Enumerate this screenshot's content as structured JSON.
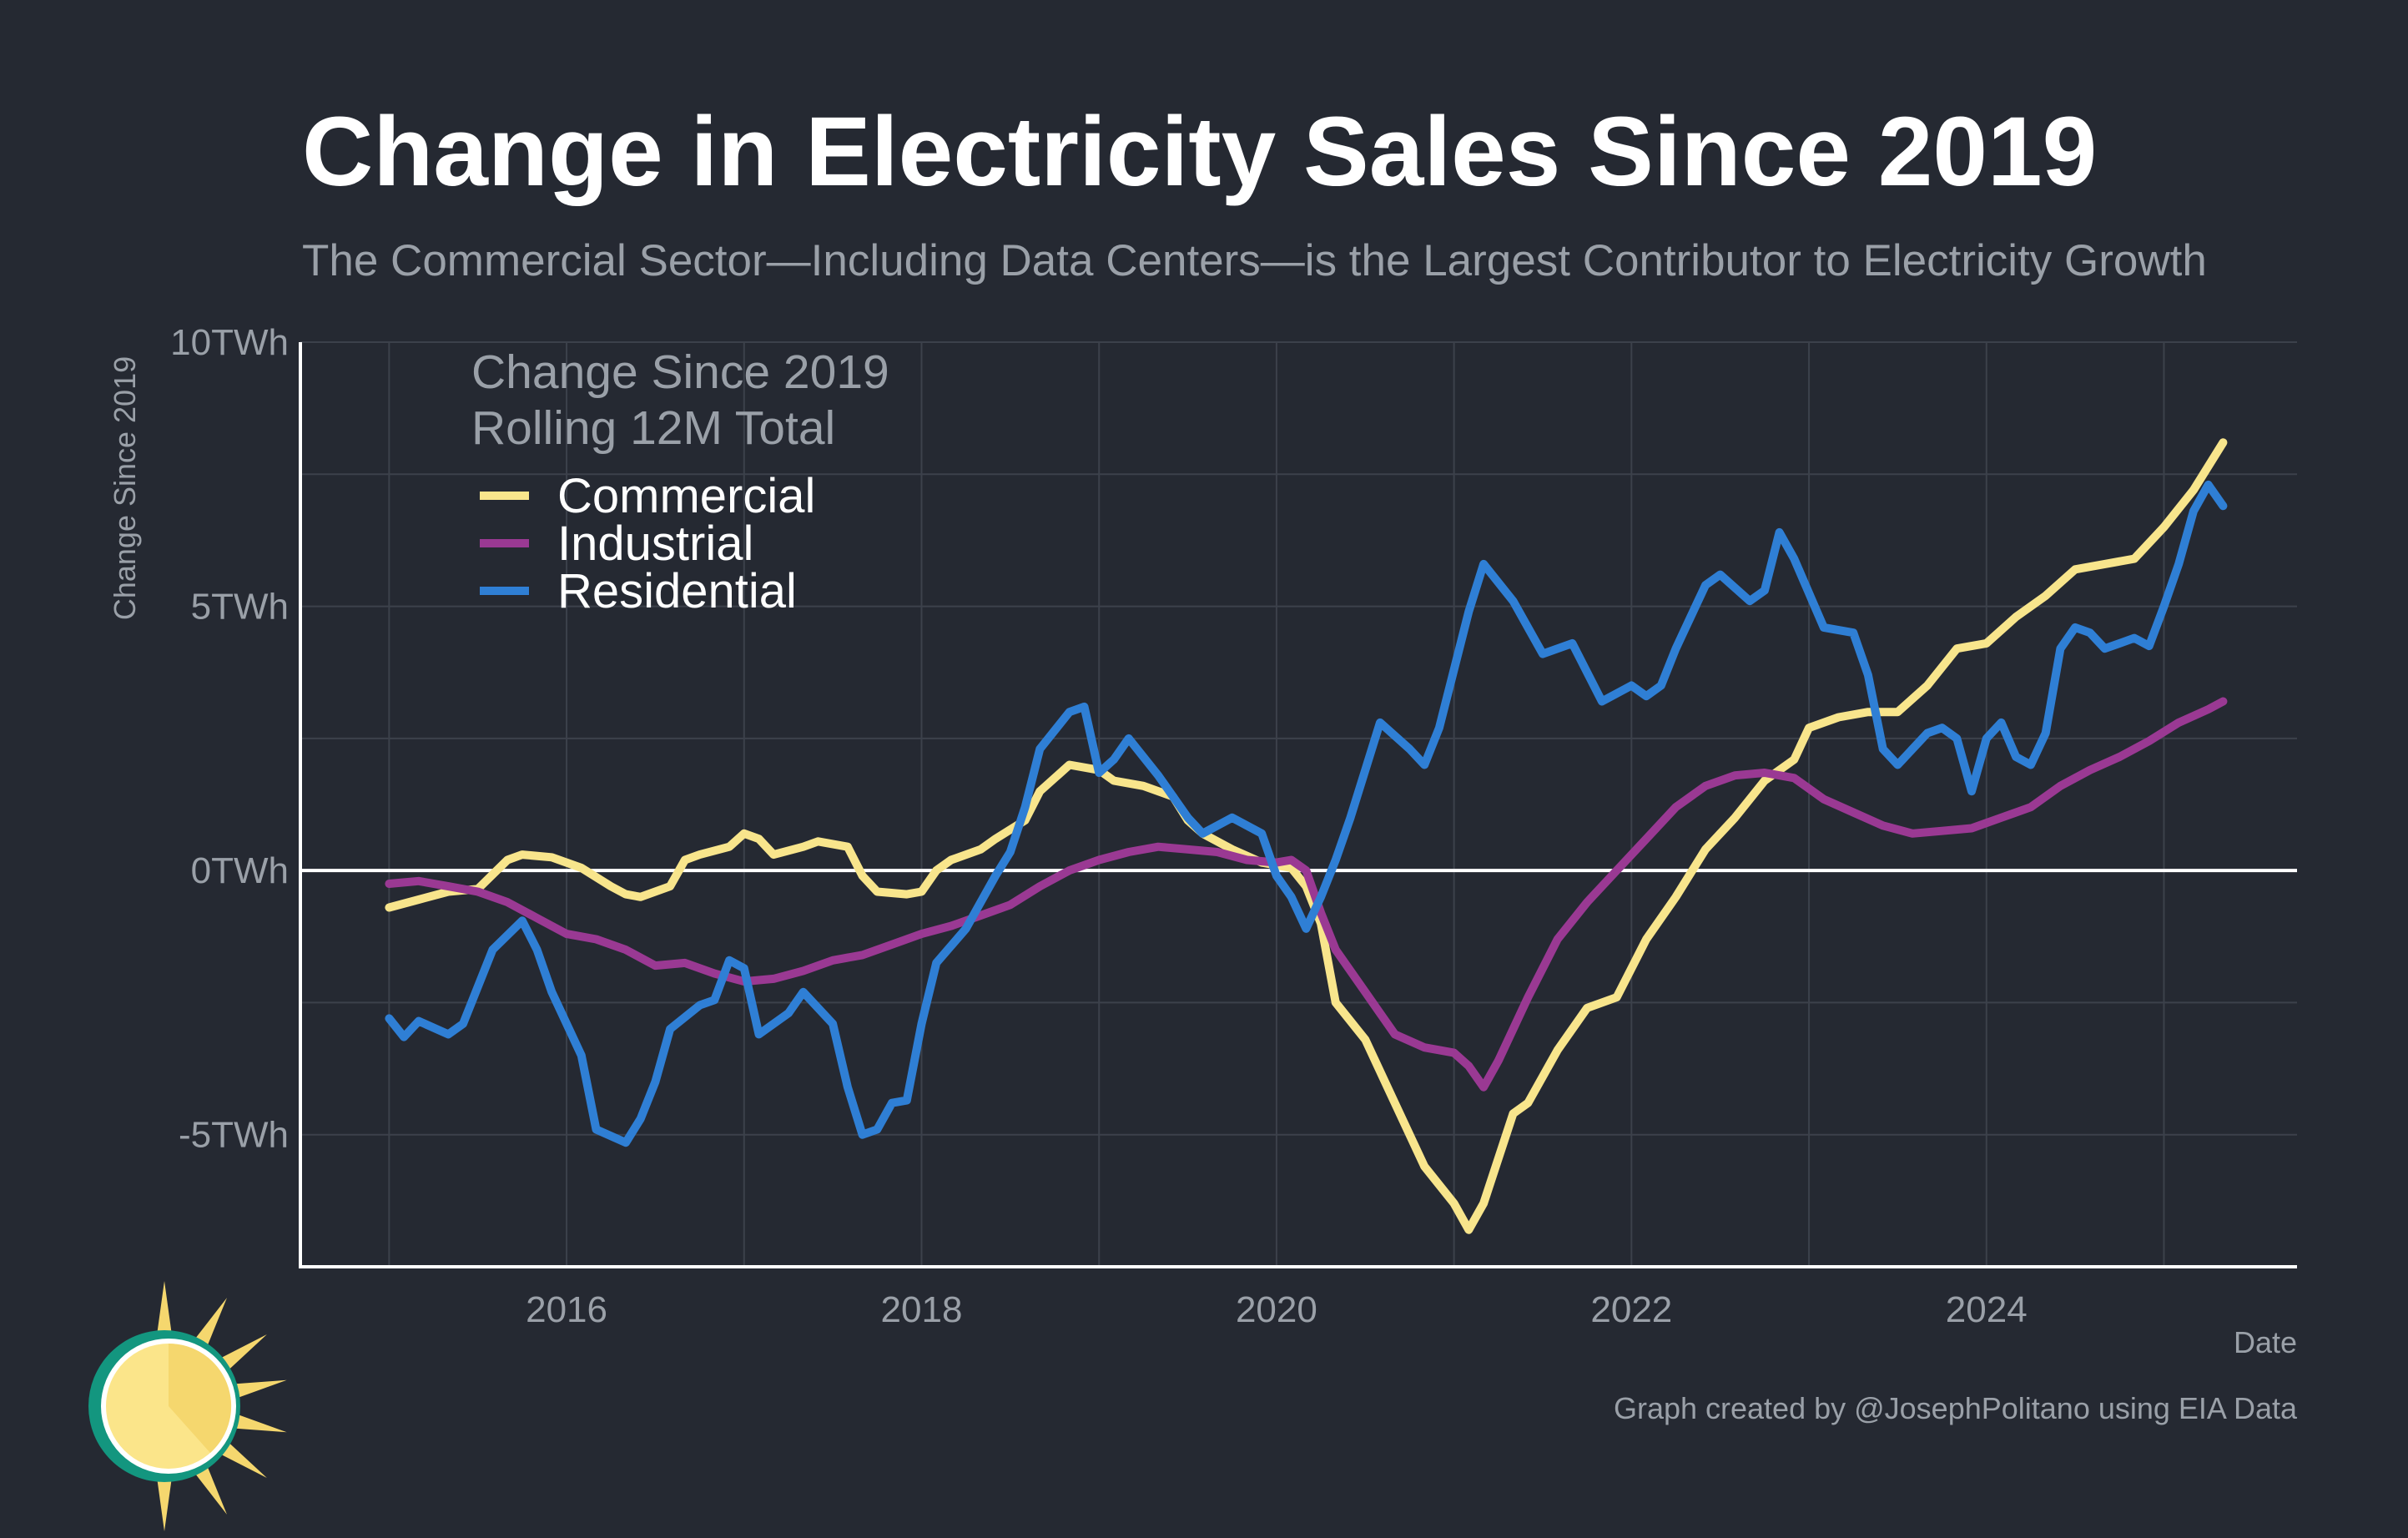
{
  "header": {
    "title": "Change in Electricity Sales Since 2019",
    "subtitle": "The Commercial Sector—Including Data Centers—is the Largest Contributor to Electricity Growth"
  },
  "footer": {
    "credit": "Graph created by @JosephPolitano using EIA Data",
    "logo_icon": "sun-logo-icon"
  },
  "colors": {
    "background": "#252932",
    "grid": "#3c414b",
    "zero_line": "#ffffff",
    "axis": "#ffffff"
  },
  "chart_data": {
    "type": "line",
    "title": "Change in Electricity Sales Since 2019",
    "subtitle": "The Commercial Sector—Including Data Centers—is the Largest Contributor to Electricity Growth",
    "xlabel": "Date",
    "ylabel": "Change Since 2019",
    "x_start": "2015-01",
    "x_end": "2025-05",
    "xlim": [
      "2014-07",
      "2025-10"
    ],
    "ylim": [
      -7.5,
      10
    ],
    "x_ticks": [
      {
        "date": "2016-01",
        "label": "2016"
      },
      {
        "date": "2018-01",
        "label": "2018"
      },
      {
        "date": "2020-01",
        "label": "2020"
      },
      {
        "date": "2022-01",
        "label": "2022"
      },
      {
        "date": "2024-01",
        "label": "2024"
      }
    ],
    "y_ticks": [
      {
        "value": -5,
        "label": "-5TWh"
      },
      {
        "value": 0,
        "label": "0TWh"
      },
      {
        "value": 5,
        "label": "5TWh"
      },
      {
        "value": 10,
        "label": "10TWh"
      }
    ],
    "grid": true,
    "legend": {
      "title_line1": "Change Since 2019",
      "title_line2": "Rolling 12M Total",
      "placement": "top-left"
    },
    "series": [
      {
        "name": "Commercial",
        "color": "#f8e58c",
        "points": [
          [
            "2015-01",
            -0.7
          ],
          [
            "2015-03",
            -0.55
          ],
          [
            "2015-05",
            -0.4
          ],
          [
            "2015-07",
            -0.35
          ],
          [
            "2015-09",
            0.2
          ],
          [
            "2015-10",
            0.3
          ],
          [
            "2015-12",
            0.25
          ],
          [
            "2016-02",
            0.05
          ],
          [
            "2016-04",
            -0.3
          ],
          [
            "2016-05",
            -0.45
          ],
          [
            "2016-06",
            -0.5
          ],
          [
            "2016-08",
            -0.3
          ],
          [
            "2016-09",
            0.2
          ],
          [
            "2016-10",
            0.3
          ],
          [
            "2016-12",
            0.45
          ],
          [
            "2017-01",
            0.7
          ],
          [
            "2017-02",
            0.6
          ],
          [
            "2017-03",
            0.3
          ],
          [
            "2017-05",
            0.45
          ],
          [
            "2017-06",
            0.55
          ],
          [
            "2017-08",
            0.45
          ],
          [
            "2017-09",
            -0.1
          ],
          [
            "2017-10",
            -0.4
          ],
          [
            "2017-12",
            -0.45
          ],
          [
            "2018-01",
            -0.4
          ],
          [
            "2018-02",
            0.0
          ],
          [
            "2018-03",
            0.2
          ],
          [
            "2018-05",
            0.4
          ],
          [
            "2018-06",
            0.6
          ],
          [
            "2018-08",
            0.95
          ],
          [
            "2018-09",
            1.5
          ],
          [
            "2018-11",
            2.0
          ],
          [
            "2019-01",
            1.9
          ],
          [
            "2019-02",
            1.7
          ],
          [
            "2019-04",
            1.6
          ],
          [
            "2019-06",
            1.4
          ],
          [
            "2019-07",
            0.95
          ],
          [
            "2019-08",
            0.7
          ],
          [
            "2019-10",
            0.4
          ],
          [
            "2019-12",
            0.15
          ],
          [
            "2020-02",
            0.05
          ],
          [
            "2020-03",
            -0.3
          ],
          [
            "2020-04",
            -1.0
          ],
          [
            "2020-05",
            -2.5
          ],
          [
            "2020-07",
            -3.2
          ],
          [
            "2020-09",
            -4.4
          ],
          [
            "2020-11",
            -5.6
          ],
          [
            "2021-01",
            -6.3
          ],
          [
            "2021-02",
            -6.8
          ],
          [
            "2021-03",
            -6.3
          ],
          [
            "2021-05",
            -4.6
          ],
          [
            "2021-06",
            -4.4
          ],
          [
            "2021-08",
            -3.4
          ],
          [
            "2021-10",
            -2.6
          ],
          [
            "2021-12",
            -2.4
          ],
          [
            "2022-02",
            -1.3
          ],
          [
            "2022-04",
            -0.5
          ],
          [
            "2022-06",
            0.4
          ],
          [
            "2022-08",
            1.0
          ],
          [
            "2022-10",
            1.7
          ],
          [
            "2022-12",
            2.1
          ],
          [
            "2023-01",
            2.7
          ],
          [
            "2023-03",
            2.9
          ],
          [
            "2023-05",
            3.0
          ],
          [
            "2023-07",
            3.0
          ],
          [
            "2023-09",
            3.5
          ],
          [
            "2023-11",
            4.2
          ],
          [
            "2024-01",
            4.3
          ],
          [
            "2024-03",
            4.8
          ],
          [
            "2024-05",
            5.2
          ],
          [
            "2024-07",
            5.7
          ],
          [
            "2024-09",
            5.8
          ],
          [
            "2024-11",
            5.9
          ],
          [
            "2025-01",
            6.5
          ],
          [
            "2025-03",
            7.2
          ],
          [
            "2025-05",
            8.1
          ]
        ]
      },
      {
        "name": "Industrial",
        "color": "#9a3993",
        "points": [
          [
            "2015-01",
            -0.25
          ],
          [
            "2015-03",
            -0.2
          ],
          [
            "2015-05",
            -0.3
          ],
          [
            "2015-07",
            -0.4
          ],
          [
            "2015-09",
            -0.6
          ],
          [
            "2015-11",
            -0.9
          ],
          [
            "2016-01",
            -1.2
          ],
          [
            "2016-03",
            -1.3
          ],
          [
            "2016-05",
            -1.5
          ],
          [
            "2016-07",
            -1.8
          ],
          [
            "2016-09",
            -1.75
          ],
          [
            "2016-11",
            -1.95
          ],
          [
            "2017-01",
            -2.1
          ],
          [
            "2017-03",
            -2.05
          ],
          [
            "2017-05",
            -1.9
          ],
          [
            "2017-07",
            -1.7
          ],
          [
            "2017-09",
            -1.6
          ],
          [
            "2017-11",
            -1.4
          ],
          [
            "2018-01",
            -1.2
          ],
          [
            "2018-03",
            -1.05
          ],
          [
            "2018-05",
            -0.85
          ],
          [
            "2018-07",
            -0.65
          ],
          [
            "2018-09",
            -0.3
          ],
          [
            "2018-11",
            0.0
          ],
          [
            "2019-01",
            0.2
          ],
          [
            "2019-03",
            0.35
          ],
          [
            "2019-05",
            0.45
          ],
          [
            "2019-07",
            0.4
          ],
          [
            "2019-09",
            0.35
          ],
          [
            "2019-11",
            0.2
          ],
          [
            "2020-01",
            0.15
          ],
          [
            "2020-02",
            0.2
          ],
          [
            "2020-03",
            0.0
          ],
          [
            "2020-04",
            -0.8
          ],
          [
            "2020-05",
            -1.5
          ],
          [
            "2020-07",
            -2.3
          ],
          [
            "2020-09",
            -3.1
          ],
          [
            "2020-11",
            -3.35
          ],
          [
            "2021-01",
            -3.45
          ],
          [
            "2021-02",
            -3.7
          ],
          [
            "2021-03",
            -4.1
          ],
          [
            "2021-04",
            -3.6
          ],
          [
            "2021-06",
            -2.4
          ],
          [
            "2021-08",
            -1.3
          ],
          [
            "2021-10",
            -0.6
          ],
          [
            "2021-12",
            0.0
          ],
          [
            "2022-02",
            0.6
          ],
          [
            "2022-04",
            1.2
          ],
          [
            "2022-06",
            1.6
          ],
          [
            "2022-08",
            1.8
          ],
          [
            "2022-10",
            1.85
          ],
          [
            "2022-12",
            1.75
          ],
          [
            "2023-02",
            1.35
          ],
          [
            "2023-04",
            1.1
          ],
          [
            "2023-06",
            0.85
          ],
          [
            "2023-08",
            0.7
          ],
          [
            "2023-10",
            0.75
          ],
          [
            "2023-12",
            0.8
          ],
          [
            "2024-02",
            1.0
          ],
          [
            "2024-04",
            1.2
          ],
          [
            "2024-06",
            1.6
          ],
          [
            "2024-08",
            1.9
          ],
          [
            "2024-10",
            2.15
          ],
          [
            "2024-12",
            2.45
          ],
          [
            "2025-02",
            2.8
          ],
          [
            "2025-04",
            3.05
          ],
          [
            "2025-05",
            3.2
          ]
        ]
      },
      {
        "name": "Residential",
        "color": "#2f7fd5",
        "points": [
          [
            "2015-01",
            -2.8
          ],
          [
            "2015-02",
            -3.15
          ],
          [
            "2015-03",
            -2.85
          ],
          [
            "2015-05",
            -3.1
          ],
          [
            "2015-06",
            -2.9
          ],
          [
            "2015-08",
            -1.5
          ],
          [
            "2015-10",
            -0.95
          ],
          [
            "2015-11",
            -1.5
          ],
          [
            "2015-12",
            -2.3
          ],
          [
            "2016-02",
            -3.5
          ],
          [
            "2016-03",
            -4.9
          ],
          [
            "2016-05",
            -5.15
          ],
          [
            "2016-06",
            -4.7
          ],
          [
            "2016-07",
            -4.0
          ],
          [
            "2016-08",
            -3.0
          ],
          [
            "2016-10",
            -2.55
          ],
          [
            "2016-11",
            -2.45
          ],
          [
            "2016-12",
            -1.7
          ],
          [
            "2017-01",
            -1.85
          ],
          [
            "2017-02",
            -3.1
          ],
          [
            "2017-04",
            -2.7
          ],
          [
            "2017-05",
            -2.3
          ],
          [
            "2017-07",
            -2.9
          ],
          [
            "2017-08",
            -4.1
          ],
          [
            "2017-09",
            -5.0
          ],
          [
            "2017-10",
            -4.9
          ],
          [
            "2017-11",
            -4.4
          ],
          [
            "2017-12",
            -4.35
          ],
          [
            "2018-01",
            -2.9
          ],
          [
            "2018-02",
            -1.75
          ],
          [
            "2018-04",
            -1.1
          ],
          [
            "2018-05",
            -0.6
          ],
          [
            "2018-06",
            -0.1
          ],
          [
            "2018-07",
            0.35
          ],
          [
            "2018-08",
            1.2
          ],
          [
            "2018-09",
            2.3
          ],
          [
            "2018-11",
            3.0
          ],
          [
            "2018-12",
            3.1
          ],
          [
            "2019-01",
            1.85
          ],
          [
            "2019-02",
            2.1
          ],
          [
            "2019-03",
            2.5
          ],
          [
            "2019-05",
            1.8
          ],
          [
            "2019-07",
            1.0
          ],
          [
            "2019-08",
            0.7
          ],
          [
            "2019-10",
            1.0
          ],
          [
            "2019-12",
            0.7
          ],
          [
            "2020-01",
            -0.1
          ],
          [
            "2020-02",
            -0.5
          ],
          [
            "2020-03",
            -1.1
          ],
          [
            "2020-04",
            -0.5
          ],
          [
            "2020-05",
            0.2
          ],
          [
            "2020-06",
            1.0
          ],
          [
            "2020-07",
            1.9
          ],
          [
            "2020-08",
            2.8
          ],
          [
            "2020-10",
            2.3
          ],
          [
            "2020-11",
            2.0
          ],
          [
            "2020-12",
            2.7
          ],
          [
            "2021-02",
            4.9
          ],
          [
            "2021-03",
            5.8
          ],
          [
            "2021-05",
            5.1
          ],
          [
            "2021-07",
            4.1
          ],
          [
            "2021-09",
            4.3
          ],
          [
            "2021-11",
            3.2
          ],
          [
            "2022-01",
            3.5
          ],
          [
            "2022-02",
            3.3
          ],
          [
            "2022-03",
            3.5
          ],
          [
            "2022-04",
            4.2
          ],
          [
            "2022-06",
            5.4
          ],
          [
            "2022-07",
            5.6
          ],
          [
            "2022-09",
            5.1
          ],
          [
            "2022-10",
            5.3
          ],
          [
            "2022-11",
            6.4
          ],
          [
            "2022-12",
            5.9
          ],
          [
            "2023-02",
            4.6
          ],
          [
            "2023-04",
            4.5
          ],
          [
            "2023-05",
            3.7
          ],
          [
            "2023-06",
            2.3
          ],
          [
            "2023-07",
            2.0
          ],
          [
            "2023-09",
            2.6
          ],
          [
            "2023-10",
            2.7
          ],
          [
            "2023-11",
            2.5
          ],
          [
            "2023-12",
            1.5
          ],
          [
            "2024-01",
            2.5
          ],
          [
            "2024-02",
            2.8
          ],
          [
            "2024-03",
            2.15
          ],
          [
            "2024-04",
            2.0
          ],
          [
            "2024-05",
            2.6
          ],
          [
            "2024-06",
            4.2
          ],
          [
            "2024-07",
            4.6
          ],
          [
            "2024-08",
            4.5
          ],
          [
            "2024-09",
            4.2
          ],
          [
            "2024-11",
            4.4
          ],
          [
            "2024-12",
            4.25
          ],
          [
            "2025-01",
            5.0
          ],
          [
            "2025-02",
            5.8
          ],
          [
            "2025-03",
            6.8
          ],
          [
            "2025-04",
            7.3
          ],
          [
            "2025-05",
            6.9
          ]
        ]
      }
    ]
  }
}
